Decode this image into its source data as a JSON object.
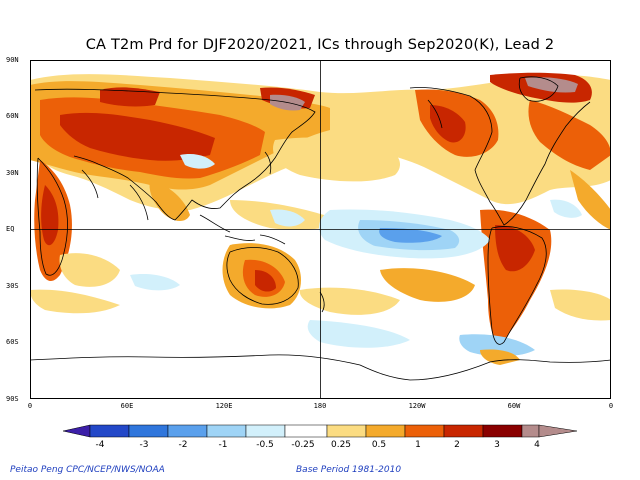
{
  "title": "CA T2m Prd for DJF2020/2021, ICs through Sep2020(K), Lead 2",
  "lat_labels": [
    "90N",
    "60N",
    "30N",
    "EQ",
    "30S",
    "60S",
    "90S"
  ],
  "lon_labels": [
    "0",
    "60E",
    "120E",
    "180",
    "120W",
    "60W",
    "0"
  ],
  "colorbar": {
    "labels": [
      "-4",
      "-3",
      "-2",
      "-1",
      "-0.5",
      "-0.25",
      "0.25",
      "0.5",
      "1",
      "2",
      "3",
      "4"
    ],
    "colors": [
      "#3c1fa8",
      "#2348c8",
      "#2f76dc",
      "#5aa0ec",
      "#9fd4f6",
      "#d2f0fb",
      "#ffffff",
      "#fbdc82",
      "#f4aa2c",
      "#ec6008",
      "#c82600",
      "#8a0000",
      "#b48c8c"
    ]
  },
  "footer": {
    "left": "Peitao Peng CPC/NCEP/NWS/NOAA",
    "right": "Base Period 1981-2010"
  }
}
